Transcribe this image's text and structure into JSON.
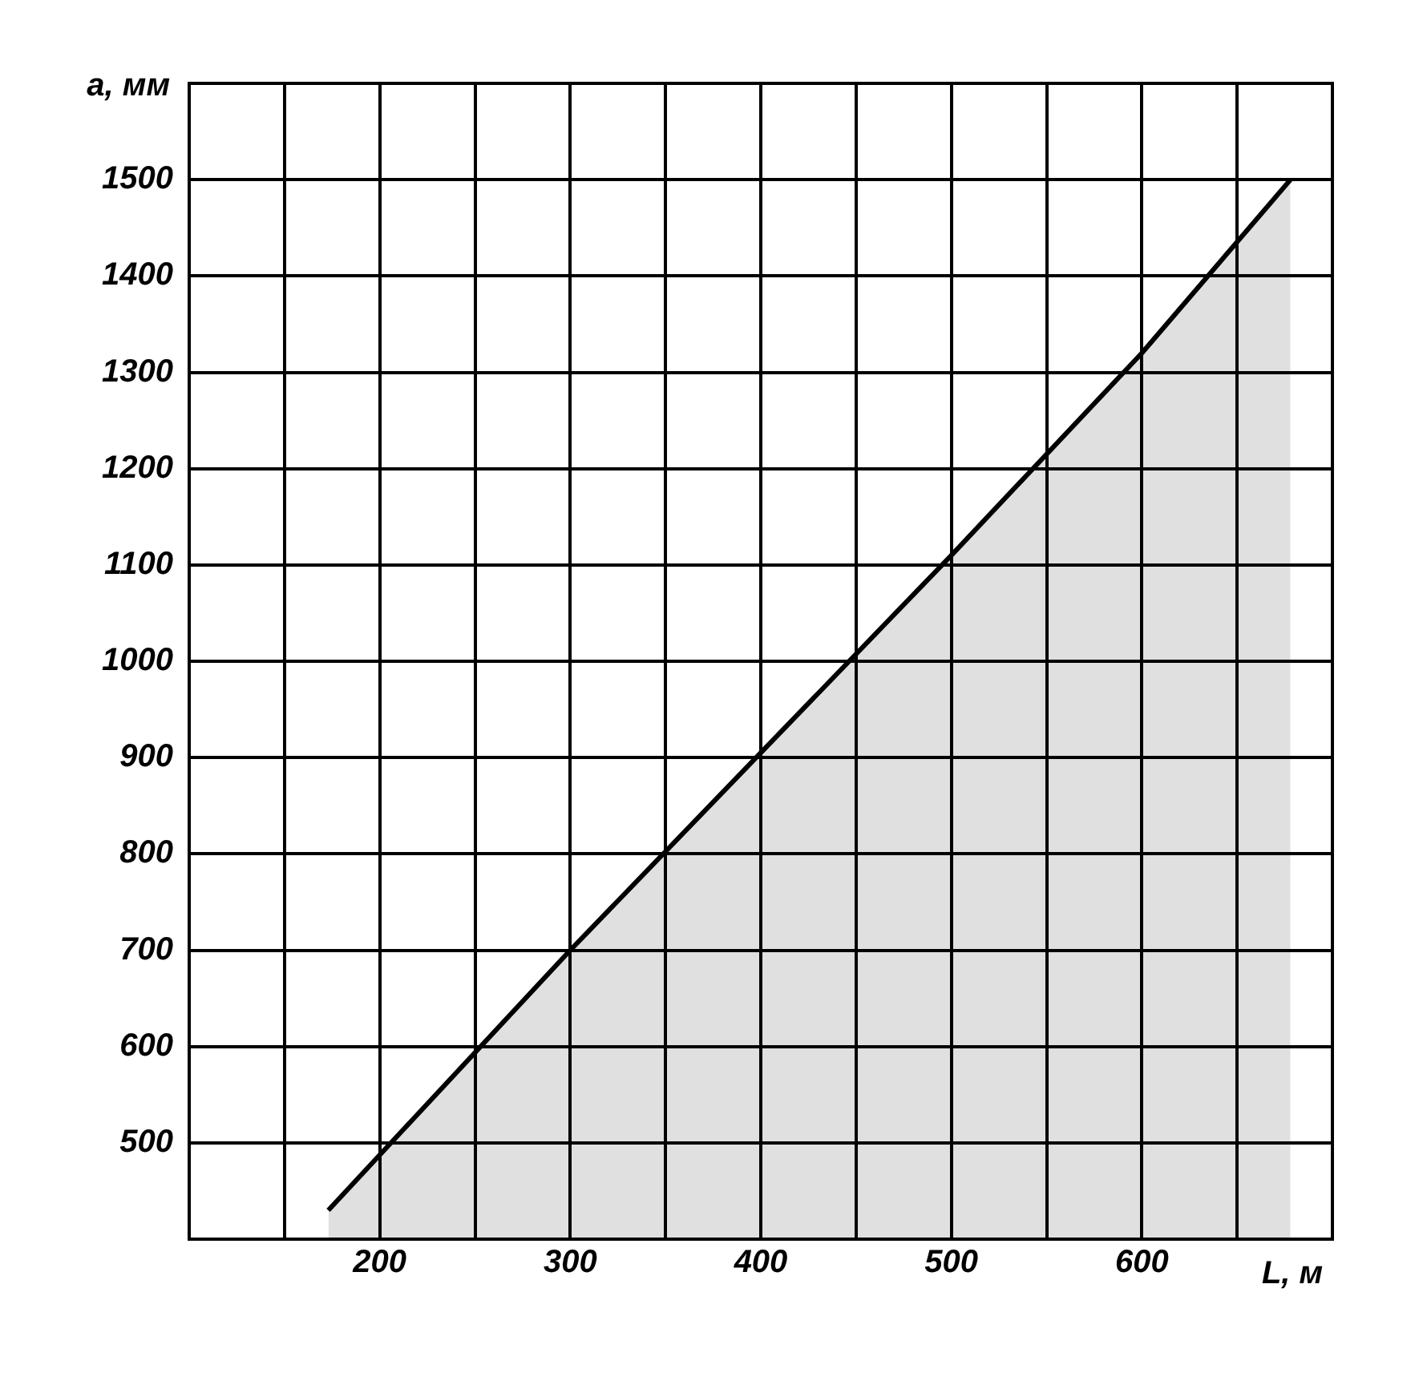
{
  "chart_data": {
    "type": "area",
    "xlabel": "L, м",
    "ylabel": "a, мм",
    "x": [
      173,
      300,
      400,
      500,
      600,
      678
    ],
    "series": [
      {
        "color": "#000000",
        "values": [
          430,
          700,
          905,
          1110,
          1320,
          1500
        ]
      }
    ],
    "xlim": [
      100,
      700
    ],
    "ylim": [
      400,
      1600
    ],
    "xticks": [
      {
        "value": 150,
        "label": null
      },
      200,
      {
        "value": 250,
        "label": null
      },
      300,
      {
        "value": 350,
        "label": null
      },
      400,
      {
        "value": 450,
        "label": null
      },
      500,
      {
        "value": 550,
        "label": null
      },
      600,
      {
        "value": 650,
        "label": null
      }
    ],
    "yticks": [
      500,
      600,
      700,
      800,
      900,
      1000,
      1100,
      1200,
      1300,
      1400,
      1500
    ],
    "grid": true,
    "legend": false,
    "marker": "none",
    "line_style": "solid"
  }
}
